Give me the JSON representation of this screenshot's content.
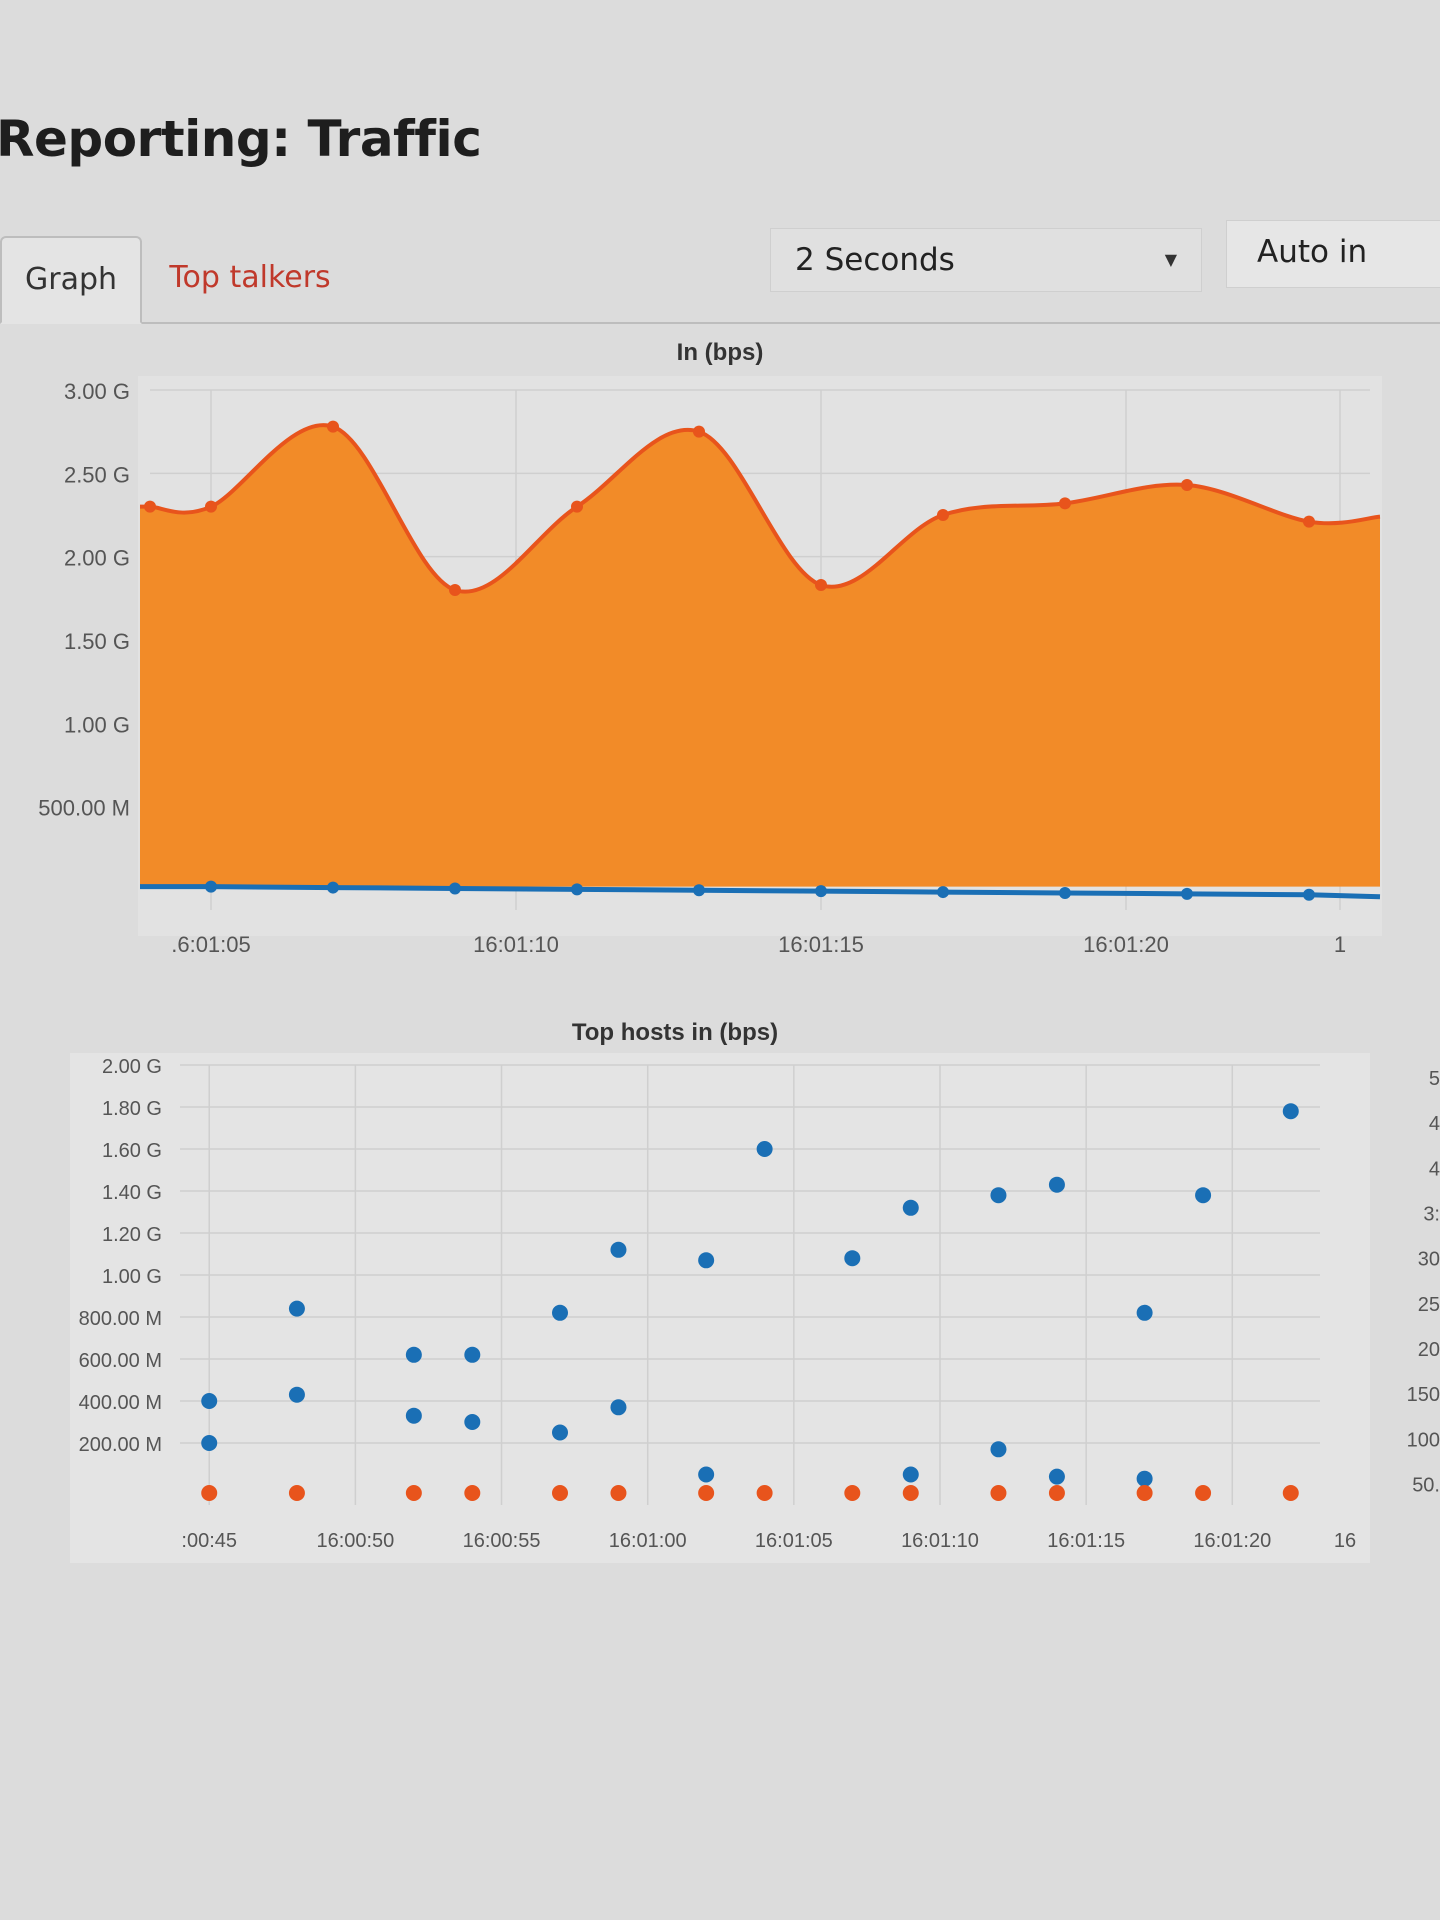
{
  "page": {
    "title": "Reporting: Traffic"
  },
  "tabs": [
    {
      "label": "Graph",
      "active": true
    },
    {
      "label": "Top talkers",
      "active": false
    }
  ],
  "controls": {
    "interval": "2 Seconds",
    "auto": "Auto in"
  },
  "colors": {
    "in": "#f28b28",
    "in_line": "#e8541c",
    "out": "#1a6fb5",
    "host_red": "#e8541c",
    "host_blue": "#1a6fb5",
    "link": "#c0392b"
  },
  "chart_data": [
    {
      "type": "area",
      "title": "In (bps)",
      "y_tick_labels": [
        "3.00 G",
        "2.50 G",
        "2.00 G",
        "1.50 G",
        "1.00 G",
        "500.00 M"
      ],
      "x_tick_labels": [
        ".6:01:05",
        "16:01:10",
        "16:01:15",
        "16:01:20",
        "1"
      ],
      "ylim": [
        0,
        3.0
      ],
      "grid": true,
      "series": [
        {
          "unit": "Gbps",
          "x": [
            "16:01:04",
            "16:01:05",
            "16:01:07",
            "16:01:09",
            "16:01:11",
            "16:01:13",
            "16:01:15",
            "16:01:17",
            "16:01:19",
            "16:01:21",
            "16:01:23"
          ],
          "values": [
            2.3,
            2.3,
            2.78,
            1.8,
            2.3,
            2.75,
            1.83,
            2.25,
            2.32,
            2.43,
            2.21
          ]
        },
        {
          "unit": "Gbps",
          "x": [
            "16:01:05",
            "16:01:07",
            "16:01:09",
            "16:01:11",
            "16:01:13",
            "16:01:15",
            "16:01:17",
            "16:01:19",
            "16:01:21",
            "16:01:23"
          ],
          "values": [
            0.02,
            0.02,
            0.02,
            0.02,
            0.02,
            0.02,
            0.02,
            0.02,
            0.02,
            0.02
          ]
        }
      ]
    },
    {
      "type": "scatter",
      "title": "Top hosts in (bps)",
      "y_tick_labels": [
        "2.00 G",
        "1.80 G",
        "1.60 G",
        "1.40 G",
        "1.20 G",
        "1.00 G",
        "800.00 M",
        "600.00 M",
        "400.00 M",
        "200.00 M"
      ],
      "x_tick_labels": [
        ":00:45",
        "16:00:50",
        "16:00:55",
        "16:01:00",
        "16:01:05",
        "16:01:10",
        "16:01:15",
        "16:01:20",
        "16"
      ],
      "right_tick_labels": [
        "5",
        "4",
        "4",
        "3:",
        "30",
        "25",
        "20",
        "150",
        "100",
        "50."
      ],
      "ylim": [
        0,
        2.0
      ],
      "grid": true,
      "series": [
        {
          "unit": "Gbps",
          "points": [
            [
              "16:00:45",
              0.4
            ],
            [
              "16:00:45",
              0.2
            ],
            [
              "16:00:48",
              0.84
            ],
            [
              "16:00:48",
              0.43
            ],
            [
              "16:00:52",
              0.62
            ],
            [
              "16:00:52",
              0.33
            ],
            [
              "16:00:54",
              0.62
            ],
            [
              "16:00:54",
              0.3
            ],
            [
              "16:00:57",
              0.82
            ],
            [
              "16:00:57",
              0.25
            ],
            [
              "16:00:59",
              1.12
            ],
            [
              "16:00:59",
              0.37
            ],
            [
              "16:01:02",
              1.07
            ],
            [
              "16:01:02",
              0.05
            ],
            [
              "16:01:04",
              1.6
            ],
            [
              "16:01:07",
              1.08
            ],
            [
              "16:01:09",
              1.32
            ],
            [
              "16:01:09",
              0.05
            ],
            [
              "16:01:12",
              1.38
            ],
            [
              "16:01:12",
              0.17
            ],
            [
              "16:01:14",
              1.43
            ],
            [
              "16:01:14",
              0.04
            ],
            [
              "16:01:17",
              0.82
            ],
            [
              "16:01:17",
              0.03
            ],
            [
              "16:01:19",
              1.38
            ],
            [
              "16:01:22",
              1.78
            ]
          ]
        },
        {
          "unit": "Gbps",
          "points": [
            [
              "16:00:45",
              0.0
            ],
            [
              "16:00:48",
              0.0
            ],
            [
              "16:00:52",
              0.0
            ],
            [
              "16:00:54",
              0.0
            ],
            [
              "16:00:57",
              0.0
            ],
            [
              "16:00:59",
              0.0
            ],
            [
              "16:01:02",
              0.0
            ],
            [
              "16:01:04",
              0.0
            ],
            [
              "16:01:07",
              0.0
            ],
            [
              "16:01:09",
              0.0
            ],
            [
              "16:01:12",
              0.0
            ],
            [
              "16:01:14",
              0.0
            ],
            [
              "16:01:17",
              0.0
            ],
            [
              "16:01:19",
              0.0
            ],
            [
              "16:01:22",
              0.0
            ]
          ]
        }
      ]
    }
  ]
}
